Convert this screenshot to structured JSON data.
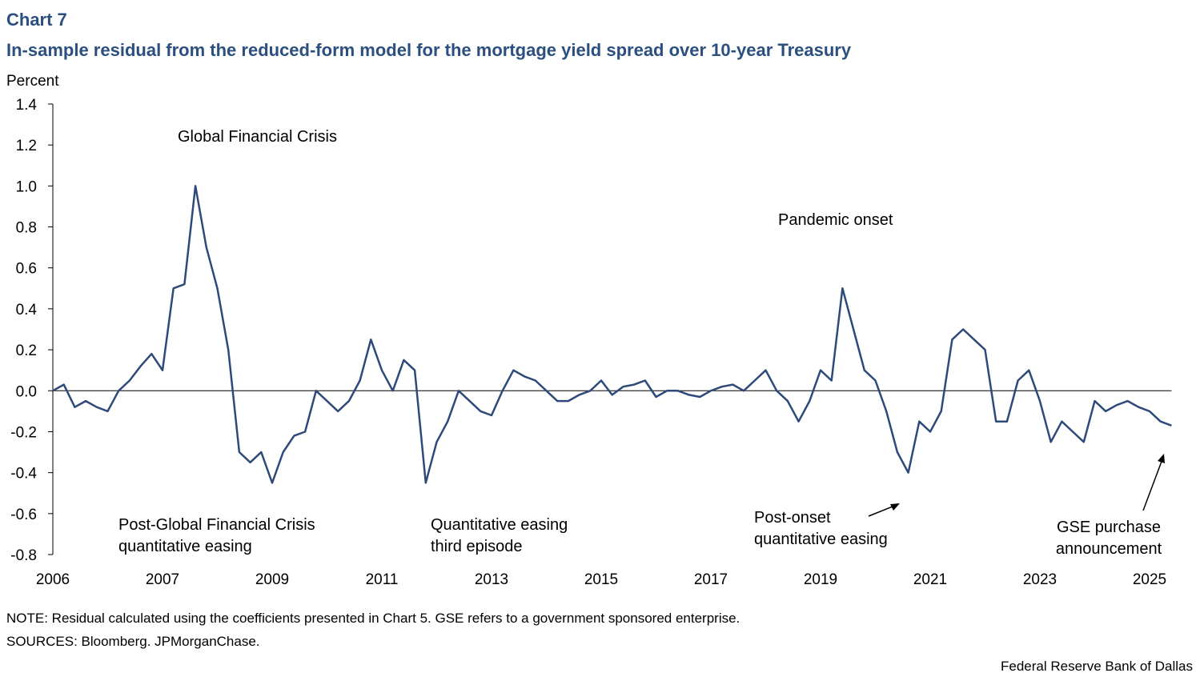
{
  "chart_data": {
    "type": "line",
    "title": "Chart 7",
    "subtitle": "In-sample residual from the reduced-form model for the mortgage yield spread over 10-year Treasury",
    "y_label": "Percent",
    "categories": [
      "2006",
      null,
      null,
      null,
      null,
      null,
      null,
      null,
      null,
      null,
      "2007",
      null,
      null,
      null,
      null,
      null,
      null,
      null,
      null,
      null,
      "2009",
      null,
      null,
      null,
      null,
      null,
      null,
      null,
      null,
      null,
      "2011",
      null,
      null,
      null,
      null,
      null,
      null,
      null,
      null,
      null,
      "2013",
      null,
      null,
      null,
      null,
      null,
      null,
      null,
      null,
      null,
      "2015",
      null,
      null,
      null,
      null,
      null,
      null,
      null,
      null,
      null,
      "2017",
      null,
      null,
      null,
      null,
      null,
      null,
      null,
      null,
      null,
      "2019",
      null,
      null,
      null,
      null,
      null,
      null,
      null,
      null,
      null,
      "2021",
      null,
      null,
      null,
      null,
      null,
      null,
      null,
      null,
      null,
      "2023",
      null,
      null,
      null,
      null,
      null,
      null,
      null,
      null,
      null,
      "2025",
      null,
      null
    ],
    "series": [
      {
        "name": "Residual",
        "color": "#2e4a7a",
        "values": [
          0.0,
          0.03,
          -0.08,
          -0.05,
          -0.08,
          -0.1,
          0.0,
          0.05,
          0.12,
          0.18,
          0.1,
          0.5,
          0.52,
          1.0,
          0.7,
          0.5,
          0.2,
          -0.3,
          -0.35,
          -0.3,
          -0.45,
          -0.3,
          -0.22,
          -0.2,
          0.0,
          -0.05,
          -0.1,
          -0.05,
          0.05,
          0.25,
          0.1,
          0.0,
          0.15,
          0.1,
          -0.45,
          -0.25,
          -0.15,
          0.0,
          -0.05,
          -0.1,
          -0.12,
          0.0,
          0.1,
          0.07,
          0.05,
          0.0,
          -0.05,
          -0.05,
          -0.02,
          0.0,
          0.05,
          -0.02,
          0.02,
          0.03,
          0.05,
          -0.03,
          0.0,
          0.0,
          -0.02,
          -0.03,
          0.0,
          0.02,
          0.03,
          0.0,
          0.05,
          0.1,
          0.0,
          -0.05,
          -0.15,
          -0.05,
          0.1,
          0.05,
          0.5,
          0.3,
          0.1,
          0.05,
          -0.1,
          -0.3,
          -0.4,
          -0.15,
          -0.2,
          -0.1,
          0.25,
          0.3,
          0.25,
          0.2,
          -0.15,
          -0.15,
          0.05,
          0.1,
          -0.05,
          -0.25,
          -0.15,
          -0.2,
          -0.25,
          -0.05,
          -0.1,
          -0.07,
          -0.05,
          -0.08,
          -0.1,
          -0.15,
          -0.17
        ]
      }
    ],
    "ylim": [
      -0.8,
      1.4
    ],
    "yticks": [
      1.4,
      1.2,
      {
        "value": 1.0,
        "label": "1.0"
      },
      0.8,
      0.6,
      0.4,
      0.2,
      {
        "value": 0,
        "label": "0.0"
      },
      -0.2,
      -0.4,
      -0.6,
      -0.8
    ],
    "annotations": [
      [
        "Global Financial Crisis"
      ],
      [
        "Post-Global Financial Crisis",
        "quantitative easing"
      ],
      [
        "Quantitative easing",
        "third episode"
      ],
      [
        "Pandemic onset"
      ],
      [
        "Post-onset",
        "quantitative easing"
      ],
      [
        "GSE purchase",
        "announcement"
      ]
    ],
    "note": "NOTE: Residual calculated using the coefficients presented in Chart 5. GSE refers to a government sponsored enterprise.",
    "sources": "SOURCES: Bloomberg. JPMorganChase.",
    "credit": "Federal Reserve Bank of Dallas"
  }
}
